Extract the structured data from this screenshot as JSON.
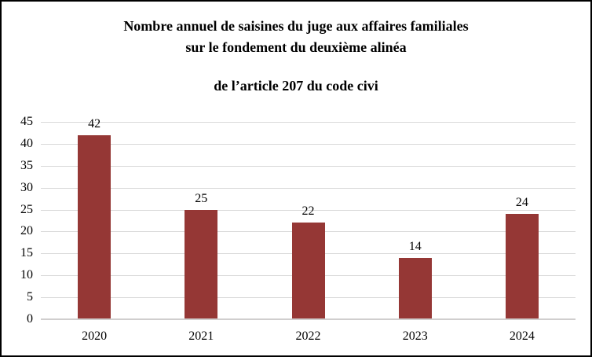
{
  "chart_data": {
    "type": "bar",
    "title_lines": [
      "Nombre annuel de saisines du juge aux affaires familiales",
      "sur le fondement du deuxième alinéa",
      "de l’article 207 du code civi"
    ],
    "categories": [
      "2020",
      "2021",
      "2022",
      "2023",
      "2024"
    ],
    "values": [
      42,
      25,
      22,
      14,
      24
    ],
    "data_labels": [
      "42",
      "25",
      "22",
      "14",
      "24"
    ],
    "yticks": [
      0,
      5,
      10,
      15,
      20,
      25,
      30,
      35,
      40,
      45
    ],
    "ylim": [
      0,
      45
    ],
    "grid": true,
    "legend": "none",
    "xlabel": "",
    "ylabel": "",
    "colors": {
      "bar": "#953735",
      "gridline": "#d9d9d9",
      "axis_line": "#d0cece",
      "text": "#000000",
      "frame_border": "#000000",
      "background": "#ffffff"
    }
  }
}
